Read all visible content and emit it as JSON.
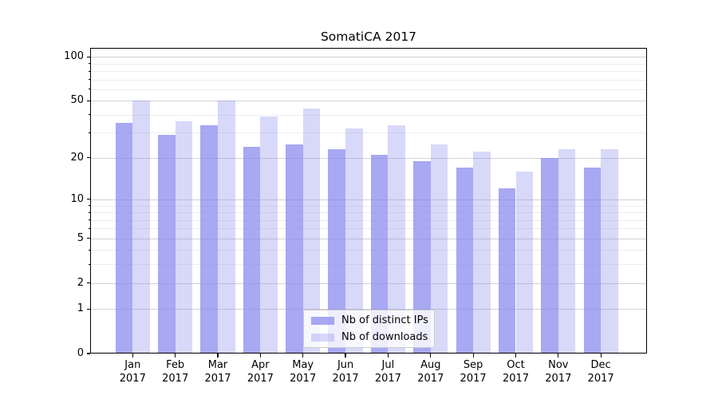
{
  "title": "SomatiCA 2017",
  "chart_data": {
    "type": "bar",
    "title": "SomatiCA 2017",
    "categories": [
      "Jan 2017",
      "Feb 2017",
      "Mar 2017",
      "Apr 2017",
      "May 2017",
      "Jun 2017",
      "Jul 2017",
      "Aug 2017",
      "Sep 2017",
      "Oct 2017",
      "Nov 2017",
      "Dec 2017"
    ],
    "x_tick_months": [
      "Jan",
      "Feb",
      "Mar",
      "Apr",
      "May",
      "Jun",
      "Jul",
      "Aug",
      "Sep",
      "Oct",
      "Nov",
      "Dec"
    ],
    "x_tick_year": "2017",
    "series": [
      {
        "name": "Nb of distinct IPs",
        "base_color": "#8888ee",
        "alpha": 0.73,
        "apparent_color": "#a8a8f3",
        "values": [
          35,
          29,
          34,
          24,
          25,
          23,
          21,
          19,
          17,
          12,
          20,
          17
        ]
      },
      {
        "name": "Nb of downloads",
        "base_color": "#8888ee",
        "alpha": 0.33,
        "apparent_color": "#d9d9f8",
        "values": [
          50,
          36,
          50,
          39,
          44,
          32,
          34,
          25,
          22,
          16,
          23,
          23
        ]
      }
    ],
    "xlabel": "",
    "ylabel": "",
    "y_scale": "log1p",
    "y_major_ticks": [
      0,
      1,
      2,
      5,
      10,
      20,
      50,
      100
    ],
    "y_minor_ticks": [
      3,
      4,
      6,
      7,
      8,
      9,
      30,
      40,
      60,
      70,
      80,
      90
    ],
    "ylim": [
      0,
      115
    ],
    "grid": true,
    "legend": {
      "position": "lower center",
      "items": [
        "Nb of distinct IPs",
        "Nb of downloads"
      ]
    }
  },
  "colors": {
    "background": "#ffffff",
    "axis": "#000000",
    "grid_major": "#d2d2d2",
    "grid_minor": "#ededed",
    "legend_border": "#cccccc",
    "text": "#000000"
  }
}
